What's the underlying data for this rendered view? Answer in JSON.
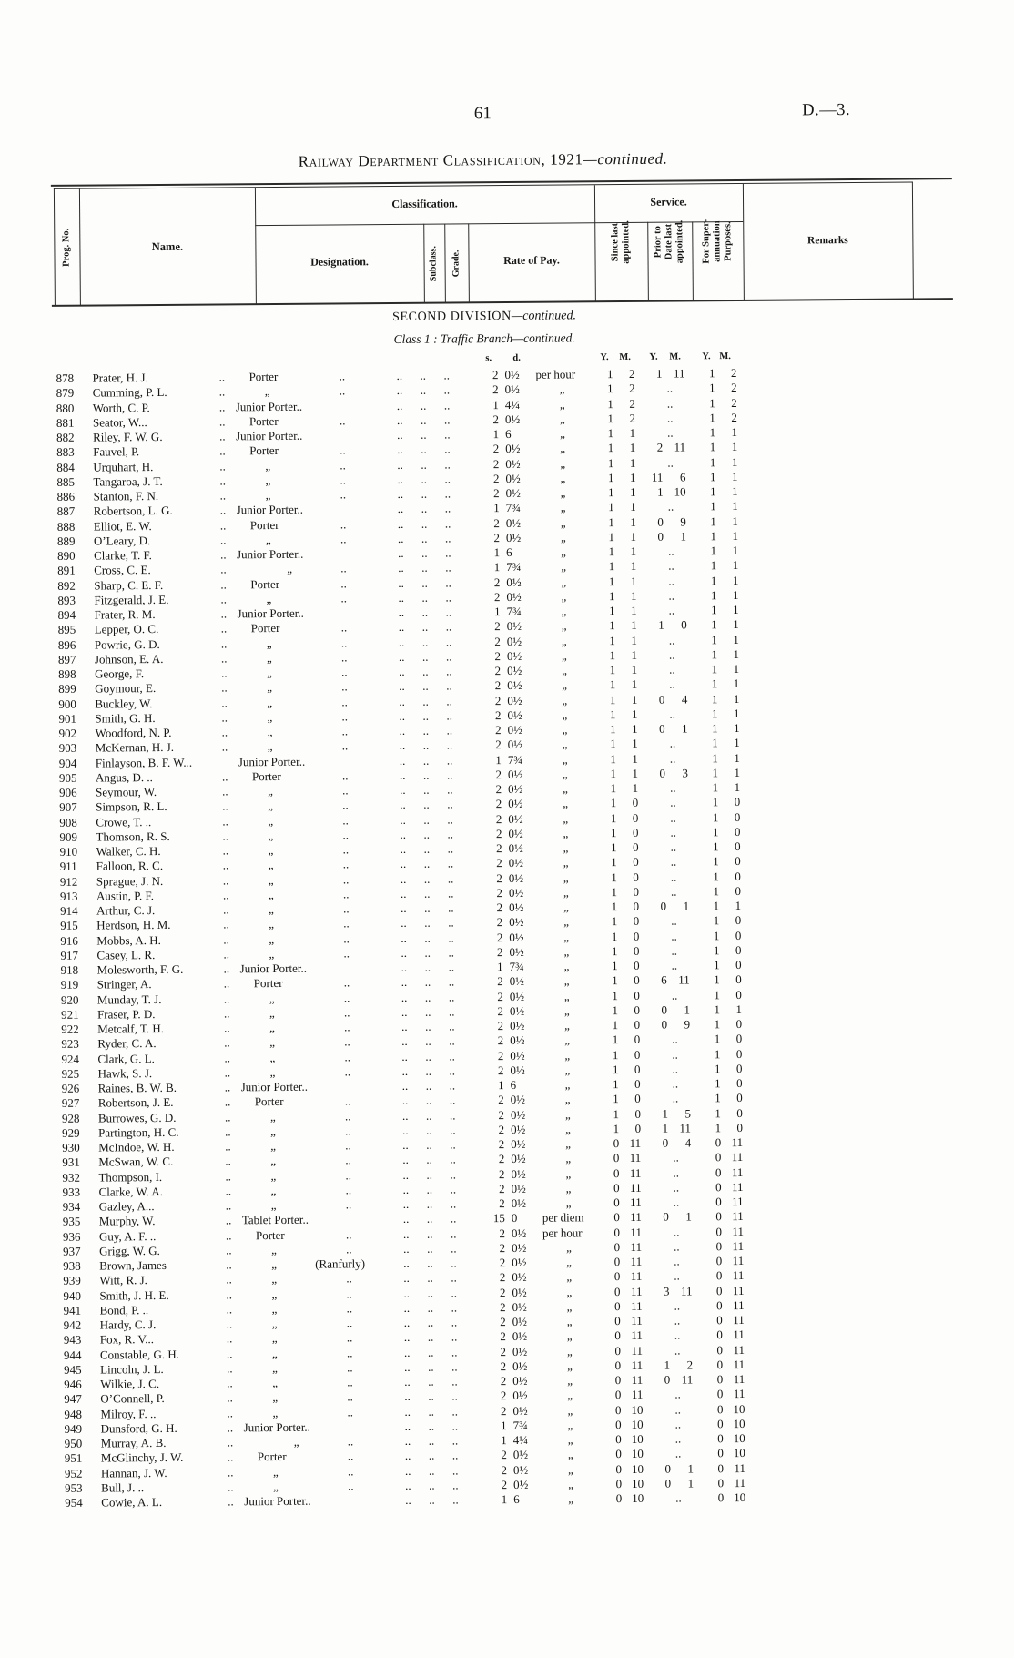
{
  "page": {
    "number": "61",
    "doc_ref": "D.—3."
  },
  "title": {
    "main": "Railway Department Classification, 1921",
    "suffix": "—continued."
  },
  "section": {
    "division": "SECOND DIVISION",
    "division_suffix": "—continued.",
    "class_line": "Class 1 : Traffic Branch",
    "class_suffix": "—continued."
  },
  "head": {
    "prog_no": "Prog. No.",
    "name": "Name.",
    "classification": "Classification.",
    "service": "Service.",
    "designation": "Designation.",
    "subclass": "Subclass.",
    "grade": "Grade.",
    "rate_of_pay": "Rate of Pay.",
    "since_last": "Since last appointed.",
    "prior_to": "Prior to Date last appointed.",
    "for_super": "For Super- annuation Purposes.",
    "remarks": "Remarks"
  },
  "units": {
    "s": "s.",
    "d": "d.",
    "y": "Y.",
    "m": "M."
  },
  "marks": {
    "ditto": "„",
    "leader": "..",
    "leader_group": "..  ..  .."
  },
  "rows": [
    {
      "no": "878",
      "name": "Prater, H. J.",
      "desig": "Porter",
      "s": "2",
      "d": "0½",
      "unit": "per hour",
      "since": "1 2",
      "prior": "1 11",
      "sup": "1 2"
    },
    {
      "no": "879",
      "name": "Cumming, P. L.",
      "desig": "„",
      "s": "2",
      "d": "0½",
      "unit": "„",
      "since": "1 2",
      "prior": "..",
      "sup": "1 2"
    },
    {
      "no": "880",
      "name": "Worth, C. P.",
      "desig": "Junior Porter..",
      "s": "1",
      "d": "4¼",
      "unit": "„",
      "since": "1 2",
      "prior": "..",
      "sup": "1 2"
    },
    {
      "no": "881",
      "name": "Seator, W...",
      "desig": "Porter",
      "s": "2",
      "d": "0½",
      "unit": "„",
      "since": "1 2",
      "prior": "..",
      "sup": "1 2"
    },
    {
      "no": "882",
      "name": "Riley, F. W. G.",
      "desig": "Junior Porter..",
      "s": "1",
      "d": "6",
      "unit": "„",
      "since": "1 1",
      "prior": "..",
      "sup": "1 1"
    },
    {
      "no": "883",
      "name": "Fauvel, P.",
      "desig": "Porter",
      "s": "2",
      "d": "0½",
      "unit": "„",
      "since": "1 1",
      "prior": "2 11",
      "sup": "1 1"
    },
    {
      "no": "884",
      "name": "Urquhart, H.",
      "desig": "„",
      "s": "2",
      "d": "0½",
      "unit": "„",
      "since": "1 1",
      "prior": "..",
      "sup": "1 1"
    },
    {
      "no": "885",
      "name": "Tangaroa, J. T.",
      "desig": "„",
      "s": "2",
      "d": "0½",
      "unit": "„",
      "since": "1 1",
      "prior": "11 6",
      "sup": "1 1"
    },
    {
      "no": "886",
      "name": "Stanton, F. N.",
      "desig": "„",
      "s": "2",
      "d": "0½",
      "unit": "„",
      "since": "1 1",
      "prior": "1 10",
      "sup": "1 1"
    },
    {
      "no": "887",
      "name": "Robertson, L. G.",
      "desig": "Junior Porter..",
      "s": "1",
      "d": "7¾",
      "unit": "„",
      "since": "1 1",
      "prior": "..",
      "sup": "1 1"
    },
    {
      "no": "888",
      "name": "Elliot, E. W.",
      "desig": "Porter",
      "s": "2",
      "d": "0½",
      "unit": "„",
      "since": "1 1",
      "prior": "0 9",
      "sup": "1 1"
    },
    {
      "no": "889",
      "name": "O’Leary, D.",
      "desig": "„",
      "s": "2",
      "d": "0½",
      "unit": "„",
      "since": "1 1",
      "prior": "0 1",
      "sup": "1 1"
    },
    {
      "no": "890",
      "name": "Clarke, T. F.",
      "desig": "Junior Porter..",
      "s": "1",
      "d": "6",
      "unit": "„",
      "since": "1 1",
      "prior": "..",
      "sup": "1 1"
    },
    {
      "no": "891",
      "name": "Cross, C. E.",
      "desig": "„",
      "deep": true,
      "s": "1",
      "d": "7¾",
      "unit": "„",
      "since": "1 1",
      "prior": "..",
      "sup": "1 1"
    },
    {
      "no": "892",
      "name": "Sharp, C. E. F.",
      "desig": "Porter",
      "s": "2",
      "d": "0½",
      "unit": "„",
      "since": "1 1",
      "prior": "..",
      "sup": "1 1"
    },
    {
      "no": "893",
      "name": "Fitzgerald, J. E.",
      "desig": "„",
      "s": "2",
      "d": "0½",
      "unit": "„",
      "since": "1 1",
      "prior": "..",
      "sup": "1 1"
    },
    {
      "no": "894",
      "name": "Frater, R. M.",
      "desig": "Junior Porter..",
      "s": "1",
      "d": "7¾",
      "unit": "„",
      "since": "1 1",
      "prior": "..",
      "sup": "1 1"
    },
    {
      "no": "895",
      "name": "Lepper, O. C.",
      "desig": "Porter",
      "s": "2",
      "d": "0½",
      "unit": "„",
      "since": "1 1",
      "prior": "1 0",
      "sup": "1 1"
    },
    {
      "no": "896",
      "name": "Powrie, G. D.",
      "desig": "„",
      "s": "2",
      "d": "0½",
      "unit": "„",
      "since": "1 1",
      "prior": "..",
      "sup": "1 1"
    },
    {
      "no": "897",
      "name": "Johnson, E. A.",
      "desig": "„",
      "s": "2",
      "d": "0½",
      "unit": "„",
      "since": "1 1",
      "prior": "..",
      "sup": "1 1"
    },
    {
      "no": "898",
      "name": "George, F.",
      "desig": "„",
      "s": "2",
      "d": "0½",
      "unit": "„",
      "since": "1 1",
      "prior": "..",
      "sup": "1 1"
    },
    {
      "no": "899",
      "name": "Goymour, E.",
      "desig": "„",
      "s": "2",
      "d": "0½",
      "unit": "„",
      "since": "1 1",
      "prior": "..",
      "sup": "1 1"
    },
    {
      "no": "900",
      "name": "Buckley, W.",
      "desig": "„",
      "s": "2",
      "d": "0½",
      "unit": "„",
      "since": "1 1",
      "prior": "0 4",
      "sup": "1 1"
    },
    {
      "no": "901",
      "name": "Smith, G. H.",
      "desig": "„",
      "s": "2",
      "d": "0½",
      "unit": "„",
      "since": "1 1",
      "prior": "..",
      "sup": "1 1"
    },
    {
      "no": "902",
      "name": "Woodford, N. P.",
      "desig": "„",
      "s": "2",
      "d": "0½",
      "unit": "„",
      "since": "1 1",
      "prior": "0 1",
      "sup": "1 1"
    },
    {
      "no": "903",
      "name": "McKernan, H. J.",
      "desig": "„",
      "s": "2",
      "d": "0½",
      "unit": "„",
      "since": "1 1",
      "prior": "..",
      "sup": "1 1"
    },
    {
      "no": "904",
      "name": "Finlayson, B. F. W...",
      "nosep": true,
      "desig": "Junior Porter..",
      "s": "1",
      "d": "7¾",
      "unit": "„",
      "since": "1 1",
      "prior": "..",
      "sup": "1 1"
    },
    {
      "no": "905",
      "name": "Angus, D. ..",
      "desig": "Porter",
      "s": "2",
      "d": "0½",
      "unit": "„",
      "since": "1 1",
      "prior": "0 3",
      "sup": "1 1"
    },
    {
      "no": "906",
      "name": "Seymour, W.",
      "desig": "„",
      "s": "2",
      "d": "0½",
      "unit": "„",
      "since": "1 1",
      "prior": "..",
      "sup": "1 1"
    },
    {
      "no": "907",
      "name": "Simpson, R. L.",
      "desig": "„",
      "s": "2",
      "d": "0½",
      "unit": "„",
      "since": "1 0",
      "prior": "..",
      "sup": "1 0"
    },
    {
      "no": "908",
      "name": "Crowe, T. ..",
      "desig": "„",
      "s": "2",
      "d": "0½",
      "unit": "„",
      "since": "1 0",
      "prior": "..",
      "sup": "1 0"
    },
    {
      "no": "909",
      "name": "Thomson, R. S.",
      "desig": "„",
      "s": "2",
      "d": "0½",
      "unit": "„",
      "since": "1 0",
      "prior": "..",
      "sup": "1 0"
    },
    {
      "no": "910",
      "name": "Walker, C. H.",
      "desig": "„",
      "s": "2",
      "d": "0½",
      "unit": "„",
      "since": "1 0",
      "prior": "..",
      "sup": "1 0"
    },
    {
      "no": "911",
      "name": "Falloon, R. C.",
      "desig": "„",
      "s": "2",
      "d": "0½",
      "unit": "„",
      "since": "1 0",
      "prior": "..",
      "sup": "1 0"
    },
    {
      "no": "912",
      "name": "Sprague, J. N.",
      "desig": "„",
      "s": "2",
      "d": "0½",
      "unit": "„",
      "since": "1 0",
      "prior": "..",
      "sup": "1 0"
    },
    {
      "no": "913",
      "name": "Austin, P. F.",
      "desig": "„",
      "s": "2",
      "d": "0½",
      "unit": "„",
      "since": "1 0",
      "prior": "..",
      "sup": "1 0"
    },
    {
      "no": "914",
      "name": "Arthur, C. J.",
      "desig": "„",
      "s": "2",
      "d": "0½",
      "unit": "„",
      "since": "1 0",
      "prior": "0 1",
      "sup": "1 1"
    },
    {
      "no": "915",
      "name": "Herdson, H. M.",
      "desig": "„",
      "s": "2",
      "d": "0½",
      "unit": "„",
      "since": "1 0",
      "prior": "..",
      "sup": "1 0"
    },
    {
      "no": "916",
      "name": "Mobbs, A. H.",
      "desig": "„",
      "s": "2",
      "d": "0½",
      "unit": "„",
      "since": "1 0",
      "prior": "..",
      "sup": "1 0"
    },
    {
      "no": "917",
      "name": "Casey, L. R.",
      "desig": "„",
      "s": "2",
      "d": "0½",
      "unit": "„",
      "since": "1 0",
      "prior": "..",
      "sup": "1 0"
    },
    {
      "no": "918",
      "name": "Molesworth, F. G.",
      "desig": "Junior Porter..",
      "s": "1",
      "d": "7¾",
      "unit": "„",
      "since": "1 0",
      "prior": "..",
      "sup": "1 0"
    },
    {
      "no": "919",
      "name": "Stringer, A.",
      "desig": "Porter",
      "s": "2",
      "d": "0½",
      "unit": "„",
      "since": "1 0",
      "prior": "6 11",
      "sup": "1 0"
    },
    {
      "no": "920",
      "name": "Munday, T. J.",
      "desig": "„",
      "s": "2",
      "d": "0½",
      "unit": "„",
      "since": "1 0",
      "prior": "..",
      "sup": "1 0"
    },
    {
      "no": "921",
      "name": "Fraser, P. D.",
      "desig": "„",
      "s": "2",
      "d": "0½",
      "unit": "„",
      "since": "1 0",
      "prior": "0 1",
      "sup": "1 1"
    },
    {
      "no": "922",
      "name": "Metcalf, T. H.",
      "desig": "„",
      "s": "2",
      "d": "0½",
      "unit": "„",
      "since": "1 0",
      "prior": "0 9",
      "sup": "1 0"
    },
    {
      "no": "923",
      "name": "Ryder, C. A.",
      "desig": "„",
      "s": "2",
      "d": "0½",
      "unit": "„",
      "since": "1 0",
      "prior": "..",
      "sup": "1 0"
    },
    {
      "no": "924",
      "name": "Clark, G. L.",
      "desig": "„",
      "s": "2",
      "d": "0½",
      "unit": "„",
      "since": "1 0",
      "prior": "..",
      "sup": "1 0"
    },
    {
      "no": "925",
      "name": "Hawk, S. J.",
      "desig": "„",
      "s": "2",
      "d": "0½",
      "unit": "„",
      "since": "1 0",
      "prior": "..",
      "sup": "1 0"
    },
    {
      "no": "926",
      "name": "Raines, B. W. B.",
      "desig": "Junior Porter..",
      "s": "1",
      "d": "6",
      "unit": "„",
      "since": "1 0",
      "prior": "..",
      "sup": "1 0"
    },
    {
      "no": "927",
      "name": "Robertson, J. E.",
      "desig": "Porter",
      "s": "2",
      "d": "0½",
      "unit": "„",
      "since": "1 0",
      "prior": "..",
      "sup": "1 0"
    },
    {
      "no": "928",
      "name": "Burrowes, G. D.",
      "desig": "„",
      "s": "2",
      "d": "0½",
      "unit": "„",
      "since": "1 0",
      "prior": "1 5",
      "sup": "1 0"
    },
    {
      "no": "929",
      "name": "Partington, H. C.",
      "desig": "„",
      "s": "2",
      "d": "0½",
      "unit": "„",
      "since": "1 0",
      "prior": "1 11",
      "sup": "1 0"
    },
    {
      "no": "930",
      "name": "McIndoe, W. H.",
      "desig": "„",
      "s": "2",
      "d": "0½",
      "unit": "„",
      "since": "0 11",
      "prior": "0 4",
      "sup": "0 11"
    },
    {
      "no": "931",
      "name": "McSwan, W. C.",
      "desig": "„",
      "s": "2",
      "d": "0½",
      "unit": "„",
      "since": "0 11",
      "prior": "..",
      "sup": "0 11"
    },
    {
      "no": "932",
      "name": "Thompson, I.",
      "desig": "„",
      "s": "2",
      "d": "0½",
      "unit": "„",
      "since": "0 11",
      "prior": "..",
      "sup": "0 11"
    },
    {
      "no": "933",
      "name": "Clarke, W. A.",
      "desig": "„",
      "s": "2",
      "d": "0½",
      "unit": "„",
      "since": "0 11",
      "prior": "..",
      "sup": "0 11"
    },
    {
      "no": "934",
      "name": "Gazley, A...",
      "desig": "„",
      "s": "2",
      "d": "0½",
      "unit": "„",
      "since": "0 11",
      "prior": "..",
      "sup": "0 11"
    },
    {
      "no": "935",
      "name": "Murphy, W.",
      "desig": "Tablet Porter..",
      "s": "15",
      "d": "0",
      "unit": "per diem",
      "since": "0 11",
      "prior": "0 1",
      "sup": "0 11"
    },
    {
      "no": "936",
      "name": "Guy, A. F. ..",
      "desig": "Porter",
      "s": "2",
      "d": "0½",
      "unit": "per hour",
      "since": "0 11",
      "prior": "..",
      "sup": "0 11"
    },
    {
      "no": "937",
      "name": "Grigg, W. G.",
      "desig": "„",
      "s": "2",
      "d": "0½",
      "unit": "„",
      "since": "0 11",
      "prior": "..",
      "sup": "0 11"
    },
    {
      "no": "938",
      "name": "Brown, James",
      "desig": "„",
      "note": "(Ranfurly)",
      "s": "2",
      "d": "0½",
      "unit": "„",
      "since": "0 11",
      "prior": "..",
      "sup": "0 11"
    },
    {
      "no": "939",
      "name": "Witt, R. J.",
      "desig": "„",
      "s": "2",
      "d": "0½",
      "unit": "„",
      "since": "0 11",
      "prior": "..",
      "sup": "0 11"
    },
    {
      "no": "940",
      "name": "Smith, J. H. E.",
      "desig": "„",
      "s": "2",
      "d": "0½",
      "unit": "„",
      "since": "0 11",
      "prior": "3 11",
      "sup": "0 11"
    },
    {
      "no": "941",
      "name": "Bond, P. ..",
      "desig": "„",
      "s": "2",
      "d": "0½",
      "unit": "„",
      "since": "0 11",
      "prior": "..",
      "sup": "0 11"
    },
    {
      "no": "942",
      "name": "Hardy, C. J.",
      "desig": "„",
      "s": "2",
      "d": "0½",
      "unit": "„",
      "since": "0 11",
      "prior": "..",
      "sup": "0 11"
    },
    {
      "no": "943",
      "name": "Fox, R. V...",
      "desig": "„",
      "s": "2",
      "d": "0½",
      "unit": "„",
      "since": "0 11",
      "prior": "..",
      "sup": "0 11"
    },
    {
      "no": "944",
      "name": "Constable, G. H.",
      "desig": "„",
      "s": "2",
      "d": "0½",
      "unit": "„",
      "since": "0 11",
      "prior": "..",
      "sup": "0 11"
    },
    {
      "no": "945",
      "name": "Lincoln, J. L.",
      "desig": "„",
      "s": "2",
      "d": "0½",
      "unit": "„",
      "since": "0 11",
      "prior": "1 2",
      "sup": "0 11"
    },
    {
      "no": "946",
      "name": "Wilkie, J. C.",
      "desig": "„",
      "s": "2",
      "d": "0½",
      "unit": "„",
      "since": "0 11",
      "prior": "0 11",
      "sup": "0 11"
    },
    {
      "no": "947",
      "name": "O’Connell, P.",
      "desig": "„",
      "s": "2",
      "d": "0½",
      "unit": "„",
      "since": "0 11",
      "prior": "..",
      "sup": "0 11"
    },
    {
      "no": "948",
      "name": "Milroy, F. ..",
      "desig": "„",
      "s": "2",
      "d": "0½",
      "unit": "„",
      "since": "0 10",
      "prior": "..",
      "sup": "0 10"
    },
    {
      "no": "949",
      "name": "Dunsford, G. H.",
      "desig": "Junior Porter..",
      "s": "1",
      "d": "7¾",
      "unit": "„",
      "since": "0 10",
      "prior": "..",
      "sup": "0 10"
    },
    {
      "no": "950",
      "name": "Murray, A. B.",
      "desig": "„",
      "deep": true,
      "s": "1",
      "d": "4¼",
      "unit": "„",
      "since": "0 10",
      "prior": "..",
      "sup": "0 10"
    },
    {
      "no": "951",
      "name": "McGlinchy, J. W.",
      "desig": "Porter",
      "s": "2",
      "d": "0½",
      "unit": "„",
      "since": "0 10",
      "prior": "..",
      "sup": "0 10"
    },
    {
      "no": "952",
      "name": "Hannan, J. W.",
      "desig": "„",
      "s": "2",
      "d": "0½",
      "unit": "„",
      "since": "0 10",
      "prior": "0 1",
      "sup": "0 11"
    },
    {
      "no": "953",
      "name": "Bull, J. ..",
      "desig": "„",
      "s": "2",
      "d": "0½",
      "unit": "„",
      "since": "0 10",
      "prior": "0 1",
      "sup": "0 11"
    },
    {
      "no": "954",
      "name": "Cowie, A. L.",
      "desig": "Junior Porter..",
      "s": "1",
      "d": "6",
      "unit": "„",
      "since": "0 10",
      "prior": "..",
      "sup": "0 10"
    }
  ]
}
